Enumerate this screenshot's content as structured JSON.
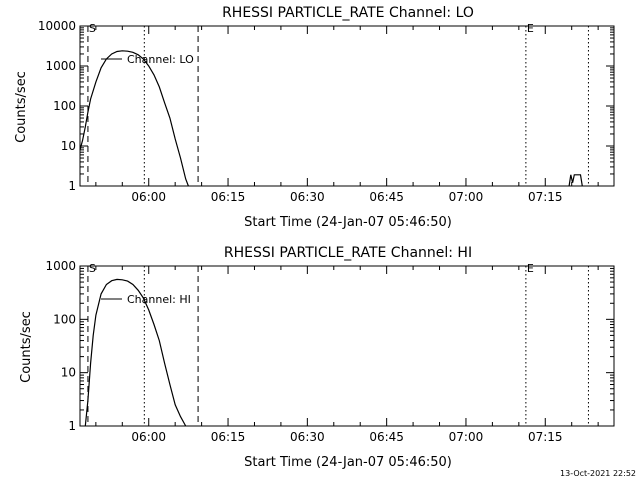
{
  "footer": {
    "timestamp": "13-Oct-2021 22:52"
  },
  "chart_data": [
    {
      "type": "line",
      "title": "RHESSI PARTICLE_RATE Channel: LO",
      "xlabel": "Start Time (24-Jan-07 05:46:50)",
      "ylabel": "Counts/sec",
      "yscale": "log",
      "xlim": [
        "05:47:00",
        "07:28:00"
      ],
      "ylim": [
        1,
        10000
      ],
      "x_ticks": [
        "06:00",
        "06:15",
        "06:30",
        "06:45",
        "07:00",
        "07:15"
      ],
      "y_ticks": [
        "1",
        "10",
        "100",
        "1000",
        "10000"
      ],
      "annotation": "Channel: LO",
      "markers": [
        {
          "label": "S",
          "time": "05:48:30",
          "style": "dashed"
        },
        {
          "label": "",
          "time": "06:09:20",
          "style": "dashed"
        },
        {
          "label": "",
          "time": "05:59:10",
          "style": "dotted"
        },
        {
          "label": "E",
          "time": "07:11:20",
          "style": "dotted"
        },
        {
          "label": "",
          "time": "07:23:10",
          "style": "dotted"
        }
      ],
      "series": [
        {
          "x": [
            "05:47:00",
            "05:47:30",
            "05:48:00",
            "05:48:30",
            "05:49:00",
            "05:50:00",
            "05:51:00",
            "05:52:00",
            "05:53:00",
            "05:54:00",
            "05:55:00",
            "05:56:00",
            "05:57:00",
            "05:58:00",
            "05:59:00",
            "06:00:00",
            "06:01:00",
            "06:02:00",
            "06:03:00",
            "06:04:00",
            "06:05:00",
            "06:06:00",
            "06:07:00",
            "06:07:30",
            "07:19:30",
            "07:19:50",
            "07:20:10",
            "07:20:30",
            "07:21:20",
            "07:21:40",
            "07:22:00"
          ],
          "values": [
            8,
            14,
            30,
            70,
            150,
            400,
            900,
            1500,
            2000,
            2300,
            2400,
            2350,
            2200,
            1900,
            1500,
            1000,
            600,
            300,
            120,
            50,
            15,
            5,
            1.5,
            1,
            1,
            1.9,
            1.2,
            1.9,
            1.9,
            1.9,
            1
          ]
        }
      ]
    },
    {
      "type": "line",
      "title": "RHESSI PARTICLE_RATE Channel: HI",
      "xlabel": "Start Time (24-Jan-07 05:46:50)",
      "ylabel": "Counts/sec",
      "yscale": "log",
      "xlim": [
        "05:47:00",
        "07:28:00"
      ],
      "ylim": [
        1,
        1000
      ],
      "x_ticks": [
        "06:00",
        "06:15",
        "06:30",
        "06:45",
        "07:00",
        "07:15"
      ],
      "y_ticks": [
        "1",
        "10",
        "100",
        "1000"
      ],
      "annotation": "Channel: HI",
      "markers": [
        {
          "label": "S",
          "time": "05:48:30",
          "style": "dashed"
        },
        {
          "label": "",
          "time": "06:09:20",
          "style": "dashed"
        },
        {
          "label": "",
          "time": "05:59:10",
          "style": "dotted"
        },
        {
          "label": "E",
          "time": "07:11:20",
          "style": "dotted"
        },
        {
          "label": "",
          "time": "07:23:10",
          "style": "dotted"
        }
      ],
      "series": [
        {
          "x": [
            "05:48:00",
            "05:48:30",
            "05:49:00",
            "05:49:30",
            "05:50:00",
            "05:51:00",
            "05:52:00",
            "05:53:00",
            "05:54:00",
            "05:55:00",
            "05:56:00",
            "05:57:00",
            "05:58:00",
            "05:59:00",
            "06:00:00",
            "06:01:00",
            "06:02:00",
            "06:03:00",
            "06:04:00",
            "06:05:00",
            "06:06:00",
            "06:07:00"
          ],
          "values": [
            1,
            3,
            15,
            50,
            120,
            300,
            450,
            530,
            560,
            550,
            520,
            450,
            350,
            250,
            150,
            80,
            40,
            15,
            6,
            2.5,
            1.5,
            1
          ]
        }
      ]
    }
  ]
}
